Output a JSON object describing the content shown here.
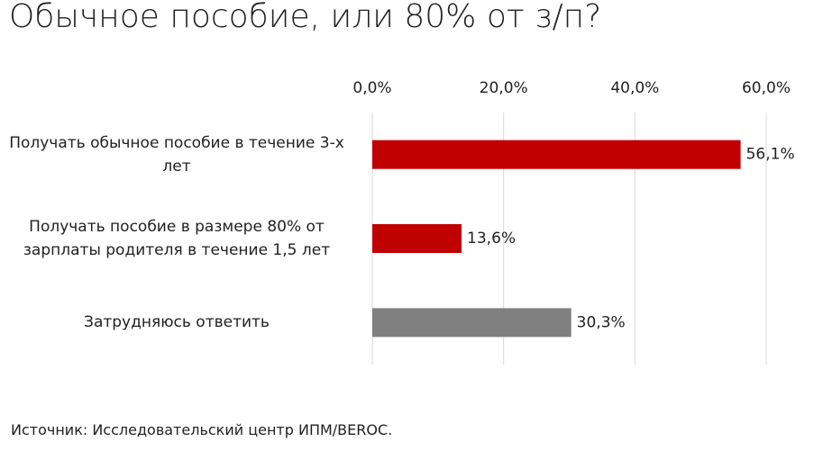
{
  "chart_data": {
    "type": "hbar",
    "title": "Обычное пособие, или 80% от з/п?",
    "source": "Источник: Исследовательский центр ИПМ/BEROC.",
    "categories": [
      "Получать обычное пособие в течение 3-х лет",
      "Получать пособие в размере 80% от зарплаты родителя в течение 1,5 лет",
      "Затрудняюсь ответить"
    ],
    "values": [
      56.1,
      13.6,
      30.3
    ],
    "value_labels": [
      "56,1%",
      "13,6%",
      "30,3%"
    ],
    "colors": [
      "#c00000",
      "#c00000",
      "#808080"
    ],
    "xlim": [
      0,
      60
    ],
    "xticks": [
      {
        "value": 0,
        "label": "0,0%"
      },
      {
        "value": 20,
        "label": "20,0%"
      },
      {
        "value": 40,
        "label": "40,0%"
      },
      {
        "value": 60,
        "label": "60,0%"
      }
    ],
    "grid": true
  }
}
